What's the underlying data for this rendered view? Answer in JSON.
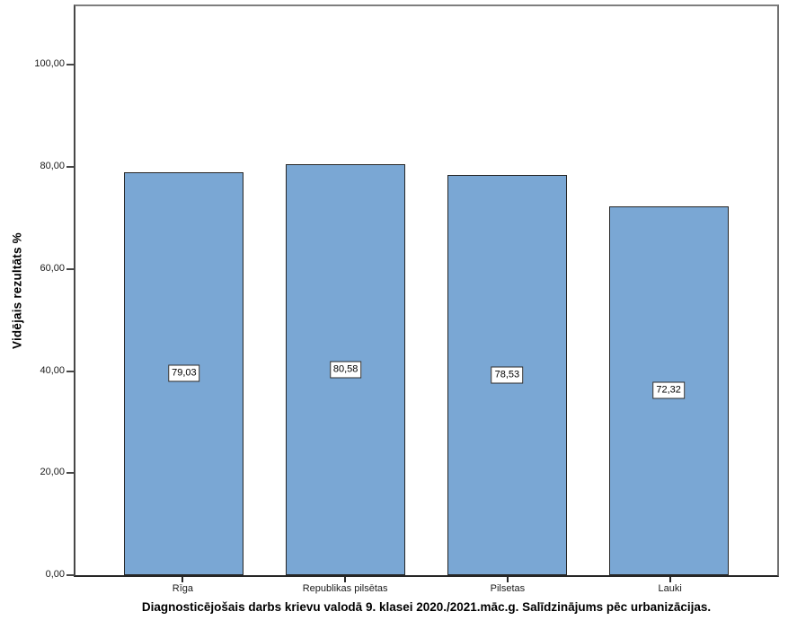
{
  "chart_data": {
    "type": "bar",
    "categories": [
      "Rīga",
      "Republikas pilsētas",
      "Pilsetas",
      "Lauki"
    ],
    "values": [
      79.03,
      80.58,
      78.53,
      72.32
    ],
    "value_labels": [
      "79,03",
      "80,58",
      "78,53",
      "72,32"
    ],
    "title": "Diagnosticējošais darbs krievu valodā 9. klasei 2020./2021.māc.g. Salīdzinājums pēc urbanizācijas.",
    "xlabel": "",
    "ylabel": "Vidējais rezultāts %",
    "ylim": [
      0,
      111.5
    ],
    "yticks": [
      0,
      20,
      40,
      60,
      80,
      100
    ],
    "ytick_labels": [
      "0,00",
      "20,00",
      "40,00",
      "60,00",
      "80,00",
      "100,00"
    ],
    "grid": false,
    "legend": "none",
    "colors": {
      "bar_fill": "#7aa7d4",
      "bar_border": "#262626",
      "frame_top": "#7e7e7e",
      "frame_left": "#474747",
      "axis_bottom": "#262626",
      "background": "#ffffff",
      "text": "#000000"
    }
  }
}
